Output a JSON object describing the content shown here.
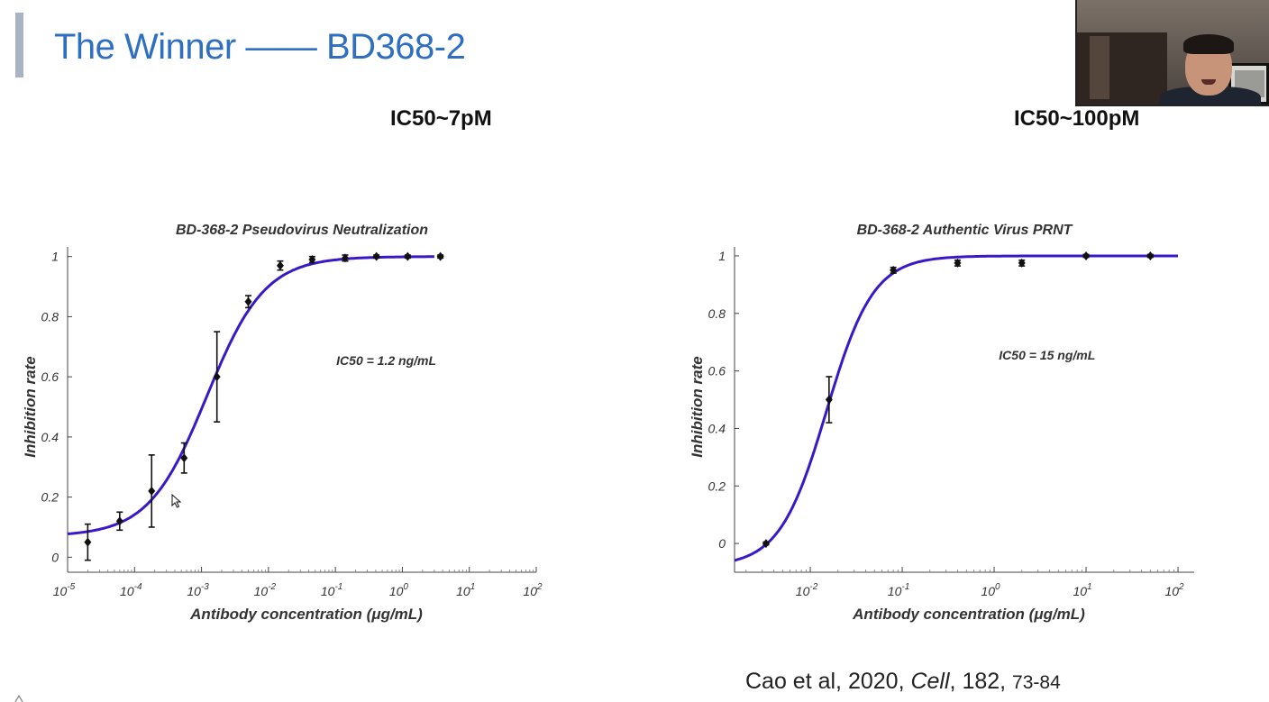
{
  "colors": {
    "title": "#2f6fc0",
    "accent_bar": "#a8b4c6",
    "curve": "#3a18c8",
    "marker": "#111111",
    "axis": "#444444"
  },
  "slide": {
    "title": "The Winner —— BD368-2",
    "ic50_left": "IC50~7pM",
    "ic50_right": "IC50~100pM",
    "citation": {
      "prefix": "Cao et al, 2020, ",
      "journal": "Cell",
      "volume": ", 182,  ",
      "pages": "73-84"
    }
  },
  "webcam": {
    "icon": "presenter-video-feed"
  },
  "cursor": {
    "icon": "mouse-pointer-icon"
  },
  "chart_data": [
    {
      "type": "scatter",
      "title": "BD-368-2 Pseudovirus Neutralization",
      "xlabel": "Antibody concentration (μg/mL)",
      "ylabel": "Inhibition rate",
      "x_scale": "log",
      "xlim": [
        1e-05,
        100
      ],
      "ylim": [
        -0.05,
        1.05
      ],
      "x_ticks": [
        1e-05,
        0.0001,
        0.001,
        0.01,
        0.1,
        1,
        10,
        100
      ],
      "x_tick_labels": [
        {
          "base": "10",
          "exp": "-5"
        },
        {
          "base": "10",
          "exp": "-4"
        },
        {
          "base": "10",
          "exp": "-3"
        },
        {
          "base": "10",
          "exp": "-2"
        },
        {
          "base": "10",
          "exp": "-1"
        },
        {
          "base": "10",
          "exp": "0"
        },
        {
          "base": "10",
          "exp": "1"
        },
        {
          "base": "10",
          "exp": "2"
        }
      ],
      "y_ticks": [
        0,
        0.2,
        0.4,
        0.6,
        0.8,
        1
      ],
      "y_tick_labels": [
        "0",
        "0.2",
        "0.4",
        "0.6",
        "0.8",
        "1"
      ],
      "annotation": "IC50 = 1.2 ng/mL",
      "grid": false,
      "points": [
        {
          "x": 2e-05,
          "y": 0.05,
          "err": 0.06
        },
        {
          "x": 6e-05,
          "y": 0.12,
          "err": 0.03
        },
        {
          "x": 0.00018,
          "y": 0.22,
          "err": 0.12
        },
        {
          "x": 0.00055,
          "y": 0.33,
          "err": 0.05
        },
        {
          "x": 0.0017,
          "y": 0.6,
          "err": 0.15
        },
        {
          "x": 0.005,
          "y": 0.85,
          "err": 0.02
        },
        {
          "x": 0.015,
          "y": 0.97,
          "err": 0.015
        },
        {
          "x": 0.045,
          "y": 0.99,
          "err": 0.01
        },
        {
          "x": 0.14,
          "y": 0.995,
          "err": 0.01
        },
        {
          "x": 0.41,
          "y": 1.0,
          "err": 0.005
        },
        {
          "x": 1.2,
          "y": 1.0,
          "err": 0.005
        },
        {
          "x": 3.7,
          "y": 1.0,
          "err": 0.005
        }
      ],
      "fit": {
        "model": "four-parameter logistic",
        "bottom": 0.07,
        "top": 1.0,
        "ec50": 0.0012,
        "hill": 1.0
      }
    },
    {
      "type": "scatter",
      "title": "BD-368-2 Authentic Virus PRNT",
      "xlabel": "Antibody concentration (μg/mL)",
      "ylabel": "Inhibition rate",
      "x_scale": "log",
      "xlim": [
        0.0015,
        150
      ],
      "ylim": [
        -0.1,
        1.05
      ],
      "x_ticks": [
        0.01,
        0.1,
        1,
        10,
        100
      ],
      "x_tick_labels": [
        {
          "base": "10",
          "exp": "-2"
        },
        {
          "base": "10",
          "exp": "-1"
        },
        {
          "base": "10",
          "exp": "0"
        },
        {
          "base": "10",
          "exp": "1"
        },
        {
          "base": "10",
          "exp": "2"
        }
      ],
      "y_ticks": [
        0,
        0.2,
        0.4,
        0.6,
        0.8,
        1
      ],
      "y_tick_labels": [
        "0",
        "0.2",
        "0.4",
        "0.6",
        "0.8",
        "1"
      ],
      "annotation": "IC50 = 15 ng/mL",
      "grid": false,
      "points": [
        {
          "x": 0.0033,
          "y": 0.0,
          "err": 0.005
        },
        {
          "x": 0.016,
          "y": 0.5,
          "err": 0.08
        },
        {
          "x": 0.08,
          "y": 0.95,
          "err": 0.01
        },
        {
          "x": 0.4,
          "y": 0.975,
          "err": 0.01
        },
        {
          "x": 2.0,
          "y": 0.975,
          "err": 0.01
        },
        {
          "x": 10,
          "y": 1.0,
          "err": 0.005
        },
        {
          "x": 50,
          "y": 1.0,
          "err": 0.005
        }
      ],
      "fit": {
        "model": "four-parameter logistic",
        "bottom": -0.08,
        "top": 1.0,
        "ec50": 0.015,
        "hill": 1.7
      }
    }
  ]
}
